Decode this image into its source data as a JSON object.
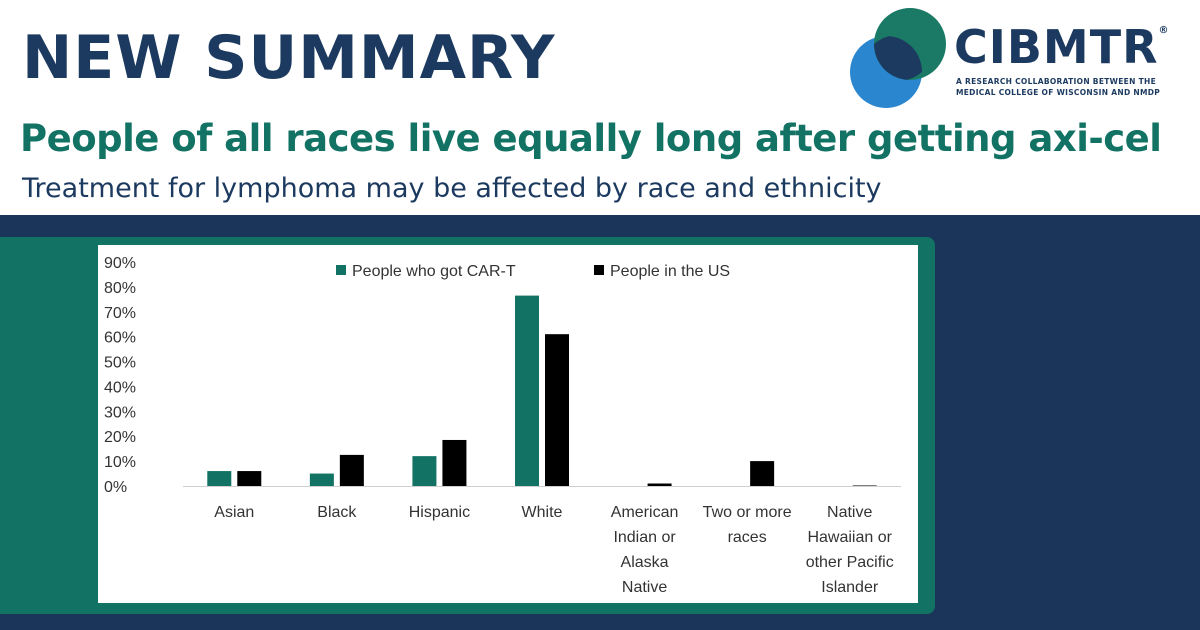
{
  "header": {
    "headline": "NEW SUMMARY",
    "subtitle": "People of all races live equally long after getting axi-cel",
    "tagline": "Treatment for lymphoma may be affected by race and ethnicity"
  },
  "logo": {
    "name": "CIBMTR",
    "mark": "®",
    "tagline_line1": "A RESEARCH COLLABORATION BETWEEN THE",
    "tagline_line2": "MEDICAL COLLEGE OF WISCONSIN AND NMDP"
  },
  "colors": {
    "navy": "#1c3a5f",
    "teal": "#127264",
    "band": "#1b355a",
    "series_cart": "#127264",
    "series_us": "#000000",
    "logo_teal": "#1a7a66",
    "logo_blue": "#2a86cf"
  },
  "chart_data": {
    "type": "bar",
    "title": "",
    "xlabel": "",
    "ylabel": "",
    "ylim": [
      0,
      90
    ],
    "yticks": [
      "90%",
      "80%",
      "70%",
      "60%",
      "50%",
      "40%",
      "30%",
      "20%",
      "10%",
      "0%"
    ],
    "categories": [
      [
        "Asian"
      ],
      [
        "Black"
      ],
      [
        "Hispanic"
      ],
      [
        "White"
      ],
      [
        "American",
        "Indian or",
        "Alaska",
        "Native"
      ],
      [
        "Two or more",
        "races"
      ],
      [
        "Native",
        "Hawaiian or",
        "other Pacific",
        "Islander"
      ]
    ],
    "series": [
      {
        "name": "People who got CAR-T",
        "values": [
          6,
          5,
          12,
          76.5,
          0,
          0,
          0
        ]
      },
      {
        "name": "People in the US",
        "values": [
          6,
          12.5,
          18.5,
          61,
          1,
          10,
          0.2
        ]
      }
    ],
    "legend": "top-center"
  }
}
